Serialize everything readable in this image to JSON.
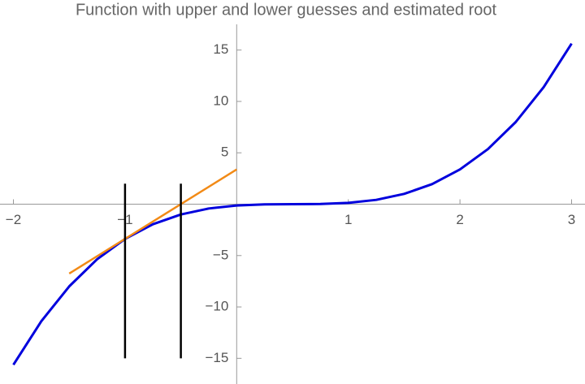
{
  "chart_data": {
    "type": "line",
    "title": "Function with upper and lower guesses and estimated root",
    "xlim": [
      -2.12,
      3.12
    ],
    "ylim": [
      -17.5,
      17.5
    ],
    "xticks": [
      {
        "value": -2,
        "label": "−2"
      },
      {
        "value": -1,
        "label": "−1"
      },
      1,
      2,
      3
    ],
    "yticks": [
      {
        "value": -15,
        "label": "−15"
      },
      {
        "value": -10,
        "label": "−10"
      },
      {
        "value": -5,
        "label": "−5"
      },
      5,
      10,
      15
    ],
    "series": [
      {
        "color": "#0000dd",
        "x": [
          -2,
          -1.75,
          -1.5,
          -1.25,
          -1,
          -0.75,
          -0.5,
          -0.25,
          0,
          0.25,
          0.5,
          0.75,
          1,
          1.25,
          1.5,
          1.75,
          2,
          2.25,
          2.5,
          2.75,
          3
        ],
        "values": [
          -15.63,
          -11.39,
          -8,
          -5.36,
          -3.38,
          -1.95,
          -1,
          -0.42,
          -0.13,
          -0.02,
          0,
          0.02,
          0.13,
          0.42,
          1,
          1.95,
          3.38,
          5.36,
          8,
          11.39,
          15.63
        ]
      },
      {
        "color": "#f28a16",
        "x": [
          -1.5,
          0
        ],
        "values": [
          -6.75,
          3.38
        ]
      },
      {
        "color": "#000000",
        "x": [
          -1,
          -1
        ],
        "values": [
          -15,
          2
        ]
      },
      {
        "color": "#000000",
        "x": [
          -0.5,
          -0.5
        ],
        "values": [
          -15,
          2
        ]
      }
    ]
  }
}
